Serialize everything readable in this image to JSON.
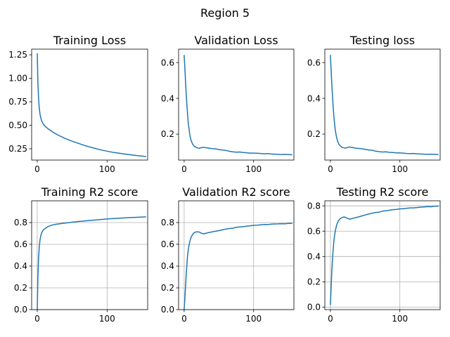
{
  "figure_title": "Region 5",
  "series_color": "#1f77b4",
  "chart_data": [
    {
      "type": "line",
      "title": "Training Loss",
      "xlim": [
        -8,
        158
      ],
      "ylim": [
        0.13,
        1.31
      ],
      "xticks": [
        {
          "v": 0,
          "label": "0"
        },
        {
          "v": 100,
          "label": "100"
        }
      ],
      "yticks": [
        {
          "v": 0.25,
          "label": "0.25"
        },
        {
          "v": 0.5,
          "label": "0.50"
        },
        {
          "v": 0.75,
          "label": "0.75"
        },
        {
          "v": 1.0,
          "label": "1.00"
        },
        {
          "v": 1.25,
          "label": "1.25"
        }
      ],
      "grid": false,
      "x": [
        0,
        1,
        2,
        3,
        4,
        5,
        6,
        7,
        8,
        10,
        12,
        15,
        20,
        25,
        30,
        40,
        50,
        60,
        70,
        80,
        90,
        100,
        110,
        120,
        130,
        140,
        150,
        155
      ],
      "y": [
        1.26,
        0.95,
        0.78,
        0.68,
        0.62,
        0.58,
        0.555,
        0.535,
        0.52,
        0.5,
        0.485,
        0.465,
        0.44,
        0.415,
        0.395,
        0.36,
        0.33,
        0.305,
        0.28,
        0.26,
        0.24,
        0.225,
        0.21,
        0.2,
        0.19,
        0.18,
        0.172,
        0.168
      ]
    },
    {
      "type": "line",
      "title": "Validation Loss",
      "xlim": [
        -8,
        158
      ],
      "ylim": [
        0.055,
        0.675
      ],
      "xticks": [
        {
          "v": 0,
          "label": "0"
        },
        {
          "v": 100,
          "label": "100"
        }
      ],
      "yticks": [
        {
          "v": 0.2,
          "label": "0.2"
        },
        {
          "v": 0.4,
          "label": "0.4"
        },
        {
          "v": 0.6,
          "label": "0.6"
        }
      ],
      "grid": false,
      "x": [
        0,
        1,
        2,
        3,
        4,
        5,
        6,
        7,
        8,
        9,
        10,
        12,
        14,
        16,
        18,
        20,
        22,
        25,
        28,
        30,
        35,
        40,
        45,
        50,
        55,
        60,
        65,
        70,
        75,
        80,
        85,
        90,
        95,
        100,
        105,
        110,
        115,
        120,
        125,
        130,
        135,
        140,
        145,
        150,
        155
      ],
      "y": [
        0.64,
        0.57,
        0.49,
        0.42,
        0.36,
        0.31,
        0.26,
        0.23,
        0.2,
        0.18,
        0.165,
        0.145,
        0.135,
        0.128,
        0.125,
        0.122,
        0.121,
        0.125,
        0.127,
        0.125,
        0.122,
        0.119,
        0.118,
        0.114,
        0.111,
        0.109,
        0.104,
        0.101,
        0.099,
        0.1,
        0.097,
        0.096,
        0.094,
        0.094,
        0.093,
        0.092,
        0.09,
        0.091,
        0.089,
        0.088,
        0.087,
        0.086,
        0.087,
        0.086,
        0.085
      ]
    },
    {
      "type": "line",
      "title": "Testing loss",
      "xlim": [
        -8,
        158
      ],
      "ylim": [
        0.055,
        0.675
      ],
      "xticks": [
        {
          "v": 0,
          "label": "0"
        },
        {
          "v": 100,
          "label": "100"
        }
      ],
      "yticks": [
        {
          "v": 0.2,
          "label": "0.2"
        },
        {
          "v": 0.4,
          "label": "0.4"
        },
        {
          "v": 0.6,
          "label": "0.6"
        }
      ],
      "grid": false,
      "x": [
        0,
        1,
        2,
        3,
        4,
        5,
        6,
        7,
        8,
        9,
        10,
        12,
        14,
        16,
        18,
        20,
        22,
        25,
        28,
        30,
        35,
        40,
        45,
        50,
        55,
        60,
        65,
        70,
        75,
        80,
        85,
        90,
        95,
        100,
        105,
        110,
        115,
        120,
        125,
        130,
        135,
        140,
        145,
        150,
        155
      ],
      "y": [
        0.64,
        0.56,
        0.48,
        0.41,
        0.35,
        0.3,
        0.26,
        0.225,
        0.2,
        0.18,
        0.165,
        0.145,
        0.135,
        0.128,
        0.125,
        0.123,
        0.122,
        0.126,
        0.128,
        0.126,
        0.123,
        0.12,
        0.118,
        0.115,
        0.112,
        0.11,
        0.105,
        0.102,
        0.1,
        0.101,
        0.098,
        0.097,
        0.095,
        0.095,
        0.094,
        0.092,
        0.091,
        0.092,
        0.09,
        0.089,
        0.088,
        0.087,
        0.088,
        0.087,
        0.086
      ]
    },
    {
      "type": "line",
      "title": "Training R2 score",
      "xlim": [
        -8,
        158
      ],
      "ylim": [
        0.0,
        1.0
      ],
      "xticks": [
        {
          "v": 0,
          "label": "0"
        },
        {
          "v": 100,
          "label": "100"
        }
      ],
      "yticks": [
        {
          "v": 0.0,
          "label": "0.0"
        },
        {
          "v": 0.2,
          "label": "0.2"
        },
        {
          "v": 0.4,
          "label": "0.4"
        },
        {
          "v": 0.6,
          "label": "0.6"
        },
        {
          "v": 0.8,
          "label": "0.8"
        }
      ],
      "grid": true,
      "x": [
        0,
        1,
        2,
        3,
        4,
        5,
        6,
        7,
        8,
        10,
        12,
        15,
        20,
        25,
        30,
        40,
        50,
        60,
        70,
        80,
        90,
        100,
        110,
        120,
        130,
        140,
        150,
        155
      ],
      "y": [
        0.0,
        0.3,
        0.48,
        0.58,
        0.64,
        0.675,
        0.7,
        0.715,
        0.725,
        0.74,
        0.75,
        0.762,
        0.775,
        0.782,
        0.787,
        0.795,
        0.803,
        0.81,
        0.816,
        0.822,
        0.828,
        0.833,
        0.837,
        0.841,
        0.845,
        0.848,
        0.851,
        0.852
      ]
    },
    {
      "type": "line",
      "title": "Validation R2 score",
      "xlim": [
        -8,
        158
      ],
      "ylim": [
        0.0,
        1.0
      ],
      "xticks": [
        {
          "v": 0,
          "label": "0"
        },
        {
          "v": 100,
          "label": "100"
        }
      ],
      "yticks": [
        {
          "v": 0.0,
          "label": "0.0"
        },
        {
          "v": 0.2,
          "label": "0.2"
        },
        {
          "v": 0.4,
          "label": "0.4"
        },
        {
          "v": 0.6,
          "label": "0.6"
        },
        {
          "v": 0.8,
          "label": "0.8"
        }
      ],
      "grid": true,
      "x": [
        0,
        1,
        2,
        3,
        4,
        5,
        6,
        7,
        8,
        9,
        10,
        12,
        14,
        16,
        18,
        20,
        22,
        25,
        28,
        30,
        35,
        40,
        45,
        50,
        55,
        60,
        65,
        70,
        75,
        80,
        85,
        90,
        95,
        100,
        105,
        110,
        115,
        120,
        125,
        130,
        135,
        140,
        145,
        150,
        155
      ],
      "y": [
        0.0,
        0.1,
        0.22,
        0.33,
        0.42,
        0.5,
        0.55,
        0.59,
        0.62,
        0.645,
        0.665,
        0.69,
        0.705,
        0.712,
        0.715,
        0.715,
        0.712,
        0.702,
        0.696,
        0.7,
        0.707,
        0.714,
        0.72,
        0.726,
        0.733,
        0.74,
        0.745,
        0.748,
        0.757,
        0.76,
        0.762,
        0.767,
        0.77,
        0.775,
        0.776,
        0.779,
        0.782,
        0.781,
        0.785,
        0.787,
        0.788,
        0.79,
        0.789,
        0.792,
        0.793
      ]
    },
    {
      "type": "line",
      "title": "Testing R2 score",
      "xlim": [
        -8,
        158
      ],
      "ylim": [
        -0.02,
        0.84
      ],
      "xticks": [
        {
          "v": 0,
          "label": "0"
        },
        {
          "v": 100,
          "label": "100"
        }
      ],
      "yticks": [
        {
          "v": 0.0,
          "label": "0.0"
        },
        {
          "v": 0.2,
          "label": "0.2"
        },
        {
          "v": 0.4,
          "label": "0.4"
        },
        {
          "v": 0.6,
          "label": "0.6"
        },
        {
          "v": 0.8,
          "label": "0.8"
        }
      ],
      "grid": true,
      "x": [
        0,
        1,
        2,
        3,
        4,
        5,
        6,
        7,
        8,
        9,
        10,
        12,
        14,
        16,
        18,
        20,
        22,
        25,
        28,
        30,
        35,
        40,
        45,
        50,
        55,
        60,
        65,
        70,
        75,
        80,
        85,
        90,
        95,
        100,
        105,
        110,
        115,
        120,
        125,
        130,
        135,
        140,
        145,
        150,
        155
      ],
      "y": [
        0.02,
        0.15,
        0.28,
        0.38,
        0.46,
        0.52,
        0.565,
        0.6,
        0.625,
        0.648,
        0.665,
        0.685,
        0.698,
        0.706,
        0.71,
        0.712,
        0.708,
        0.7,
        0.695,
        0.698,
        0.705,
        0.712,
        0.72,
        0.728,
        0.735,
        0.742,
        0.748,
        0.75,
        0.758,
        0.762,
        0.765,
        0.77,
        0.772,
        0.776,
        0.778,
        0.781,
        0.784,
        0.784,
        0.787,
        0.79,
        0.792,
        0.794,
        0.793,
        0.797,
        0.798
      ]
    }
  ]
}
